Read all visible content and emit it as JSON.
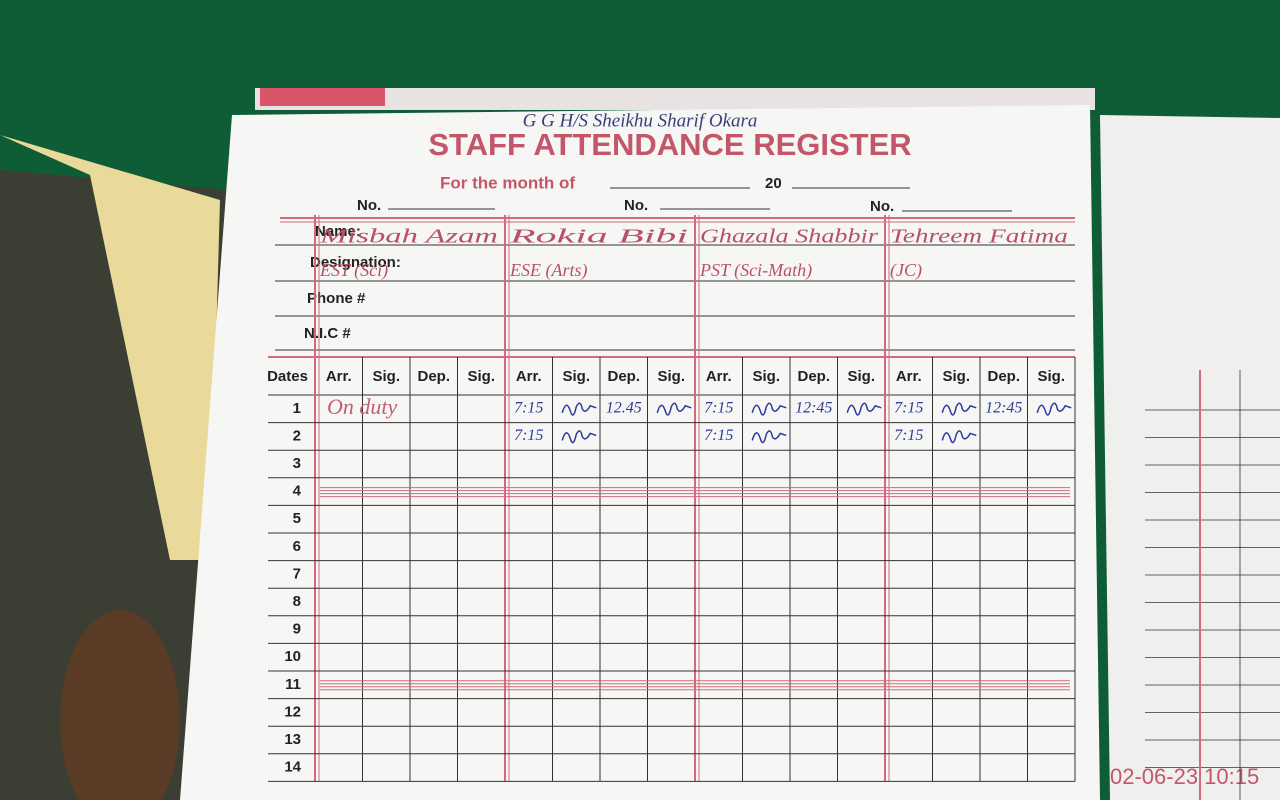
{
  "header": {
    "school": "G G H/S Sheikhu Sharif Okara",
    "title": "STAFF ATTENDANCE REGISTER",
    "month_label": "For the month of",
    "year_prefix": "20",
    "number_label": "No."
  },
  "staff_labels": {
    "name": "Name:",
    "designation": "Designation:",
    "phone": "Phone #",
    "nic": "N.I.C #"
  },
  "staff": [
    {
      "name": "Misbah Azam",
      "designation": "EST (Sci)"
    },
    {
      "name": "Rokia Bibi",
      "designation": "ESE (Arts)"
    },
    {
      "name": "Ghazala Shabbir",
      "designation": "PST (Sci-Math)"
    },
    {
      "name": "Tehreem Fatima",
      "designation": "(JC)"
    }
  ],
  "table": {
    "dates_header": "Dates",
    "column_headers": [
      "Arr.",
      "Sig.",
      "Dep.",
      "Sig."
    ],
    "rows": [
      {
        "date": 1,
        "entries": [
          {
            "note": "On duty"
          },
          {
            "arr": "7:15",
            "dep": "12.45"
          },
          {
            "arr": "7:15",
            "dep": "12:45"
          },
          {
            "arr": "7:15",
            "dep": "12:45"
          }
        ]
      },
      {
        "date": 2,
        "entries": [
          {},
          {
            "arr": "7:15"
          },
          {
            "arr": "7:15"
          },
          {
            "arr": "7:15"
          }
        ]
      },
      {
        "date": 3
      },
      {
        "date": 4
      },
      {
        "date": 5
      },
      {
        "date": 6
      },
      {
        "date": 7
      },
      {
        "date": 8
      },
      {
        "date": 9
      },
      {
        "date": 10
      },
      {
        "date": 11
      },
      {
        "date": 12
      },
      {
        "date": 13
      },
      {
        "date": 14
      }
    ]
  },
  "timestamp": "02-06-23 10:15"
}
